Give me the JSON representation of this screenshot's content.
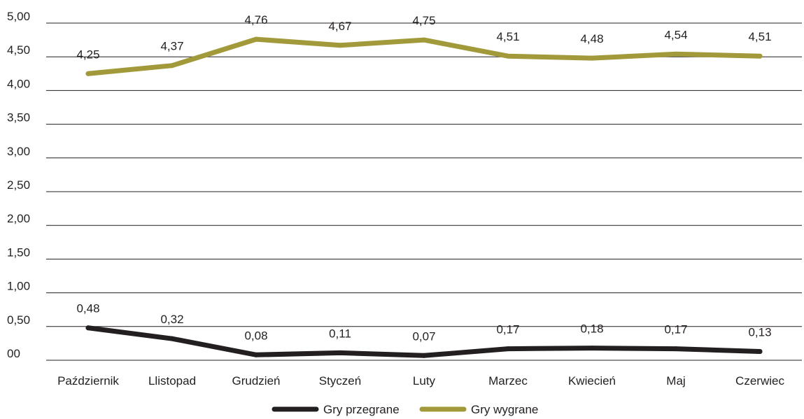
{
  "colors": {
    "lost": "#231f20",
    "won": "#a29a3a",
    "grid": "#231f20",
    "text": "#231f20"
  },
  "chart_data": {
    "type": "line",
    "categories": [
      "Październik",
      "Llistopad",
      "Grudzień",
      "Styczeń",
      "Luty",
      "Marzec",
      "Kwiecień",
      "Maj",
      "Czerwiec"
    ],
    "y_ticks": [
      "00",
      "0,50",
      "1,00",
      "1,50",
      "2,00",
      "2,50",
      "3,00",
      "3,50",
      "4,00",
      "4,50",
      "5,00"
    ],
    "ylim": [
      0,
      5
    ],
    "grid": true,
    "legend_position": "bottom",
    "series": [
      {
        "name": "Gry przegrane",
        "color": "#231f20",
        "values": [
          0.48,
          0.32,
          0.08,
          0.11,
          0.07,
          0.17,
          0.18,
          0.17,
          0.13
        ],
        "labels": [
          "0,48",
          "0,32",
          "0,08",
          "0,11",
          "0,07",
          "0,17",
          "0,18",
          "0,17",
          "0,13"
        ]
      },
      {
        "name": "Gry wygrane",
        "color": "#a29a3a",
        "values": [
          4.25,
          4.37,
          4.76,
          4.67,
          4.75,
          4.51,
          4.48,
          4.54,
          4.51
        ],
        "labels": [
          "4,25",
          "4,37",
          "4,76",
          "4,67",
          "4,75",
          "4,51",
          "4,48",
          "4,54",
          "4,51"
        ]
      }
    ]
  }
}
